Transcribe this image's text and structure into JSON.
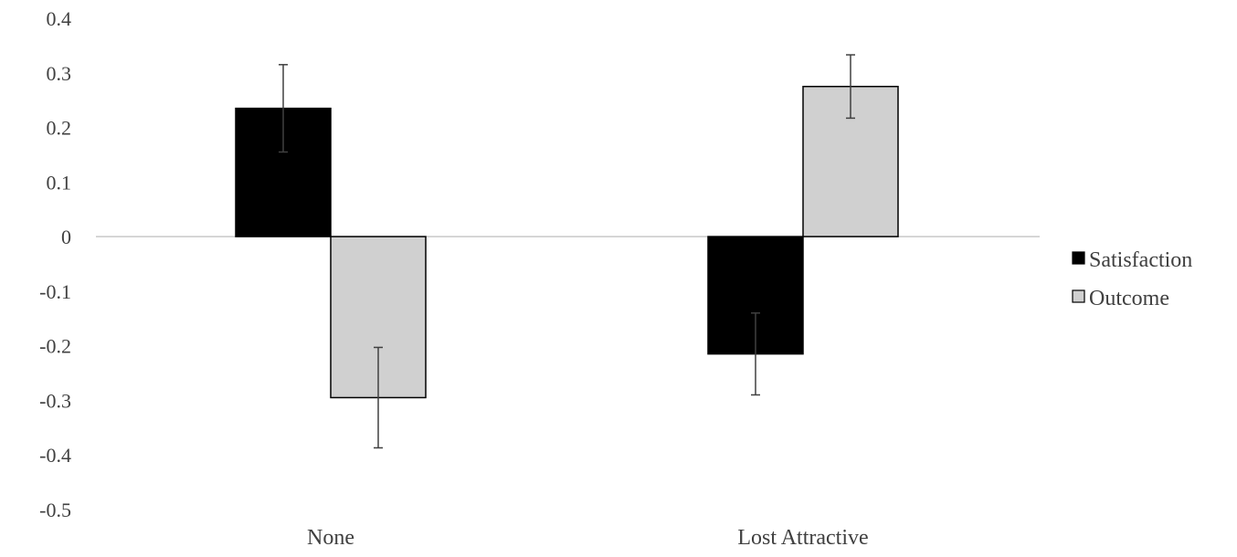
{
  "chart_data": {
    "type": "bar",
    "title": "",
    "xlabel": "",
    "ylabel": "",
    "categories": [
      "None",
      "Lost Attractive"
    ],
    "series": [
      {
        "name": "Satisfaction",
        "color": "#000000",
        "values": [
          0.235,
          -0.215
        ],
        "error": [
          0.08,
          0.075
        ]
      },
      {
        "name": "Outcome",
        "color": "#d0d0d0",
        "values": [
          -0.295,
          0.275
        ],
        "error": [
          0.092,
          0.058
        ]
      }
    ],
    "ylim": [
      -0.5,
      0.4
    ],
    "yticks": [
      0.4,
      0.3,
      0.2,
      0.1,
      0,
      -0.1,
      -0.2,
      -0.3,
      -0.4,
      -0.5
    ],
    "ytick_labels": [
      "0.4",
      "0.3",
      "0.2",
      "0.1",
      "0",
      "-0.1",
      "-0.2",
      "-0.3",
      "-0.4",
      "-0.5"
    ],
    "grid": false,
    "legend_position": "right"
  }
}
